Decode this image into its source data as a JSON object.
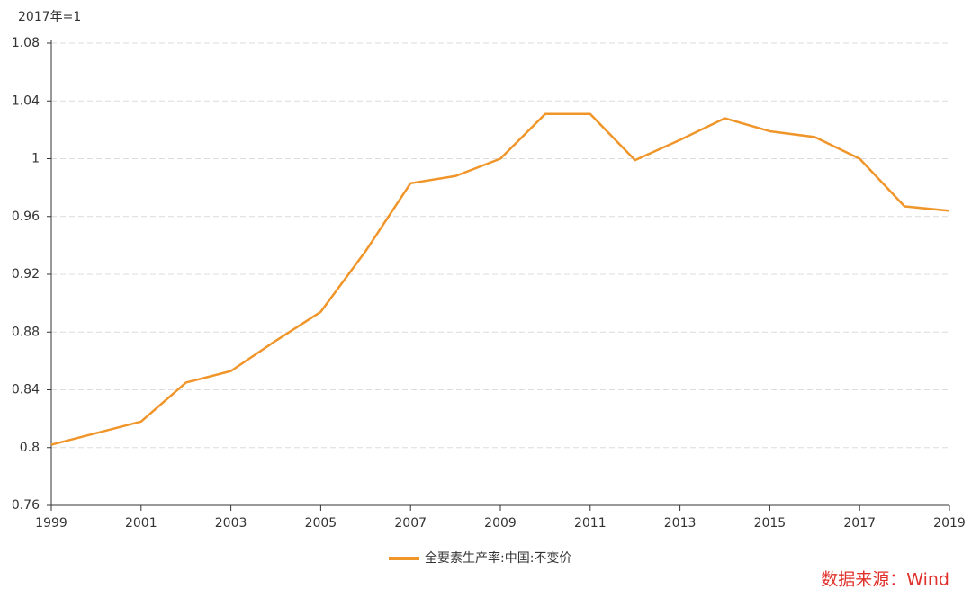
{
  "chart_data": {
    "type": "line",
    "y_label": "2017年=1",
    "source": "数据来源：Wind",
    "x": [
      1999,
      2000,
      2001,
      2002,
      2003,
      2004,
      2005,
      2006,
      2007,
      2008,
      2009,
      2010,
      2011,
      2012,
      2013,
      2014,
      2015,
      2016,
      2017,
      2018,
      2019
    ],
    "series": [
      {
        "name": "全要素生产率:中国:不变价",
        "color": "#f0952a",
        "values": [
          0.802,
          0.81,
          0.818,
          0.845,
          0.853,
          0.874,
          0.894,
          0.936,
          0.983,
          0.988,
          1.0,
          1.031,
          1.031,
          0.999,
          1.013,
          1.028,
          1.019,
          1.015,
          1.0,
          0.967,
          0.964
        ]
      }
    ],
    "xlim": [
      1999,
      2019
    ],
    "xticks": [
      1999,
      2001,
      2003,
      2005,
      2007,
      2009,
      2011,
      2013,
      2015,
      2017,
      2019
    ],
    "ylim": [
      0.76,
      1.08
    ],
    "yticks": [
      0.76,
      0.8,
      0.84,
      0.88,
      0.92,
      0.96,
      1,
      1.04,
      1.08
    ],
    "grid": true
  }
}
